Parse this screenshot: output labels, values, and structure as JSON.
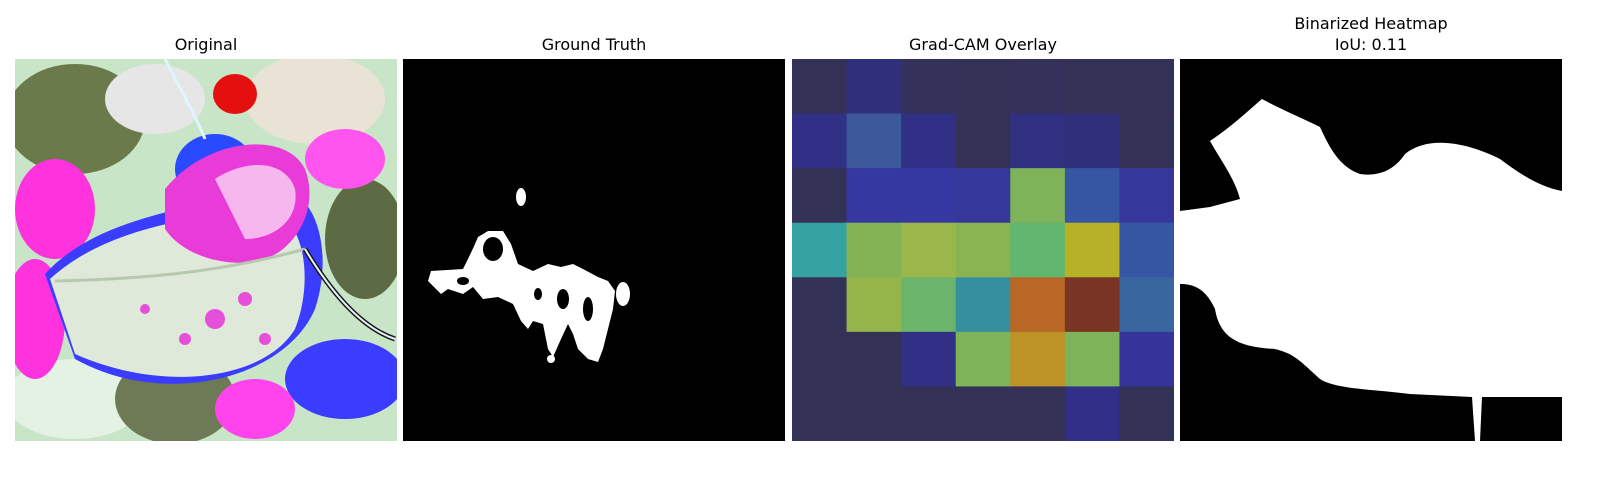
{
  "panels": [
    {
      "title": "Original"
    },
    {
      "title": "Ground Truth"
    },
    {
      "title": "Grad-CAM Overlay"
    },
    {
      "title": "Binarized Heatmap",
      "subtitle": "IoU: 0.11"
    }
  ],
  "colors": {
    "background": "#ffffff",
    "mask_fg": "#ffffff",
    "mask_bg": "#000000"
  },
  "gradcam_grid": [
    [
      "#343157",
      "#302f79",
      "#34315b",
      "#343157",
      "#34315b",
      "#343157",
      "#343157"
    ],
    [
      "#312f86",
      "#3a589a",
      "#312f86",
      "#343157",
      "#312f80",
      "#302f79",
      "#343157"
    ],
    [
      "#343157",
      "#3538a0",
      "#3538a0",
      "#35389a",
      "#7eb35a",
      "#3656a3",
      "#35389a"
    ],
    [
      "#35a1a1",
      "#82b456",
      "#9bb64b",
      "#8ab452",
      "#62b66f",
      "#b5b22a",
      "#3656a3"
    ],
    [
      "#343157",
      "#95b54b",
      "#6ab46b",
      "#358f9e",
      "#b86724",
      "#7a3424",
      "#3a66a0"
    ],
    [
      "#343157",
      "#343157",
      "#312f86",
      "#7eb35a",
      "#bd9326",
      "#7eb35a",
      "#35349a"
    ],
    [
      "#343157",
      "#343157",
      "#343157",
      "#343157",
      "#343157",
      "#312f86",
      "#343157"
    ]
  ]
}
